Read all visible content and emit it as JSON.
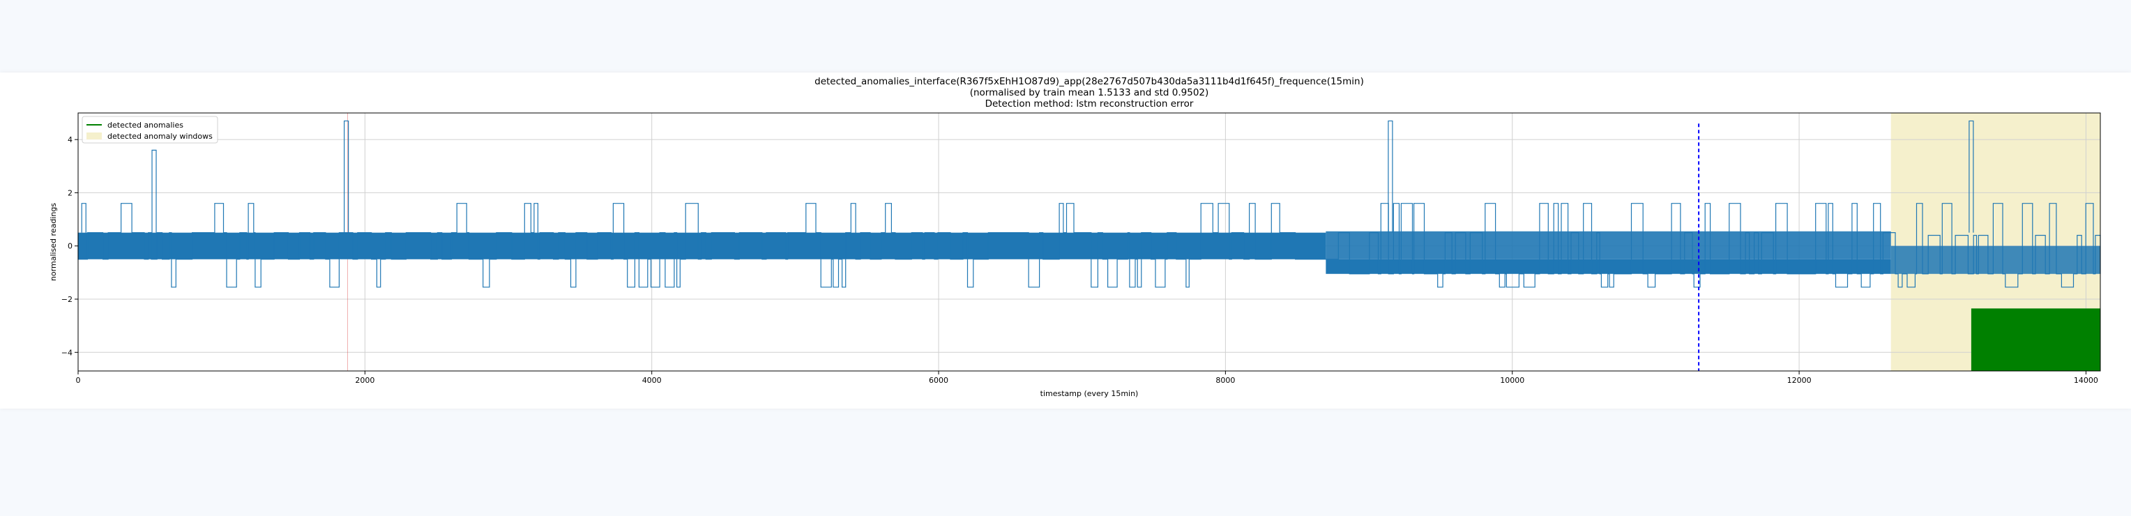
{
  "page": {
    "background": "#f6f9fd",
    "card_background": "#ffffff"
  },
  "chart_data": {
    "type": "line",
    "title_lines": [
      "detected_anomalies_interface(R367f5xEhH1O87d9)_app(28e2767d507b430da5a3111b4d1f645f)_frequence(15min)",
      "(normalised by train mean 1.5133 and std 0.9502)",
      "Detection method: lstm reconstruction error"
    ],
    "xlabel": "timestamp (every 15min)",
    "ylabel": "normalised readings",
    "xlim": [
      0,
      14100
    ],
    "ylim": [
      -4.7,
      5.0
    ],
    "xticks": [
      0,
      2000,
      4000,
      6000,
      8000,
      10000,
      12000,
      14000
    ],
    "yticks": [
      -4,
      -2,
      0,
      2,
      4
    ],
    "grid": true,
    "legend": {
      "placement": "top-left",
      "entries": [
        {
          "label": "detected anomalies",
          "kind": "line",
          "color": "#008000"
        },
        {
          "label": "detected anomaly windows",
          "kind": "patch",
          "color": "#f5f0cc"
        }
      ]
    },
    "series": [
      {
        "kind": "signal",
        "color": "#1f77b4",
        "levels": [
          -1.05,
          -0.5,
          0.5,
          1.6
        ],
        "dense_band": [
          -0.5,
          0.5
        ],
        "dense_band_2": [
          -1.05,
          0.55
        ],
        "dense_band_3": [
          -1.05,
          0.0
        ],
        "spikes": [
          {
            "x": 40,
            "y": 1.6
          },
          {
            "x": 530,
            "y": 3.6
          },
          {
            "x": 1870,
            "y": 4.7
          },
          {
            "x": 9150,
            "y": 4.7
          },
          {
            "x": 13200,
            "y": 4.7
          }
        ]
      }
    ],
    "annotations": {
      "anomaly_window": {
        "x_start": 12640,
        "x_end": 14100,
        "color": "#f5f0cc"
      },
      "dashed_marker": {
        "x": 11300,
        "color": "#0000ff"
      },
      "red_marker": {
        "x": 1880,
        "color": "#d62728"
      },
      "green_block": {
        "x_start": 13200,
        "x_end": 14100,
        "y_start": -4.7,
        "y_end": -2.35,
        "color": "#008000"
      }
    }
  }
}
